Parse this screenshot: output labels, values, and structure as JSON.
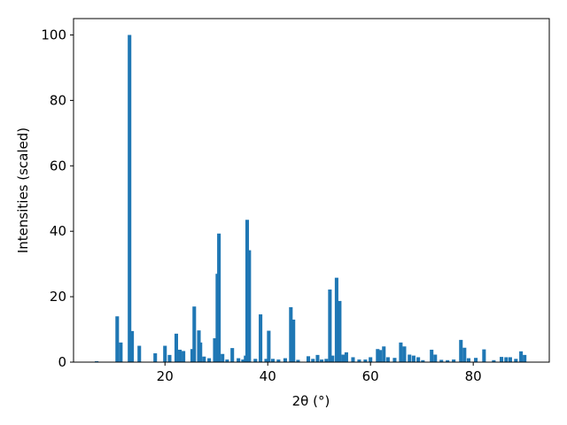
{
  "chart_data": {
    "type": "bar",
    "x": [
      6.7,
      10.7,
      11.4,
      13.1,
      13.6,
      15.0,
      18.1,
      20.0,
      20.9,
      22.2,
      22.9,
      23.6,
      25.3,
      25.7,
      26.6,
      26.9,
      27.6,
      28.6,
      29.7,
      30.2,
      30.5,
      31.2,
      32.1,
      33.1,
      34.3,
      35.2,
      35.7,
      36.0,
      36.4,
      37.6,
      38.6,
      39.7,
      40.2,
      41.0,
      42.1,
      43.4,
      44.5,
      45.0,
      45.9,
      47.9,
      48.8,
      49.7,
      50.5,
      51.4,
      52.1,
      52.6,
      53.4,
      54.0,
      54.7,
      55.3,
      56.6,
      57.8,
      59.0,
      60.0,
      61.4,
      61.9,
      62.6,
      63.4,
      64.7,
      65.9,
      66.6,
      67.6,
      68.4,
      69.3,
      70.2,
      71.9,
      72.6,
      73.8,
      75.0,
      76.2,
      77.6,
      78.3,
      79.1,
      80.5,
      82.1,
      84.0,
      85.5,
      86.4,
      87.2,
      88.3,
      89.3,
      90.0
    ],
    "values": [
      0.3,
      14,
      6,
      100,
      9.5,
      5,
      2.7,
      5,
      2.2,
      8.7,
      3.8,
      3.4,
      4,
      17,
      9.7,
      6,
      1.7,
      1.2,
      7.3,
      27,
      39.3,
      2.5,
      0.8,
      4.3,
      1.2,
      0.8,
      2,
      43.5,
      34.2,
      1,
      14.6,
      1,
      9.6,
      1,
      0.8,
      1.2,
      16.8,
      13,
      0.7,
      1.8,
      1,
      2.2,
      0.8,
      1,
      22.2,
      2,
      25.8,
      18.7,
      2.3,
      3,
      1.5,
      0.8,
      0.8,
      1.5,
      4,
      3.7,
      4.8,
      1.5,
      1.3,
      6,
      4.8,
      2.3,
      2,
      1.5,
      0.6,
      3.8,
      2.3,
      0.7,
      0.6,
      0.8,
      6.8,
      4.4,
      1.2,
      1.3,
      3.9,
      0.6,
      1.6,
      1.5,
      1.5,
      1,
      3.3,
      2.2
    ],
    "color": "#1f77b4",
    "xlabel": "2θ (°)",
    "ylabel": "Intensities (scaled)",
    "xlim": [
      2.2,
      94.8
    ],
    "xticks": [
      20,
      40,
      60,
      80
    ],
    "ylim": [
      0,
      105
    ],
    "yticks": [
      0,
      20,
      40,
      60,
      80,
      100
    ]
  }
}
